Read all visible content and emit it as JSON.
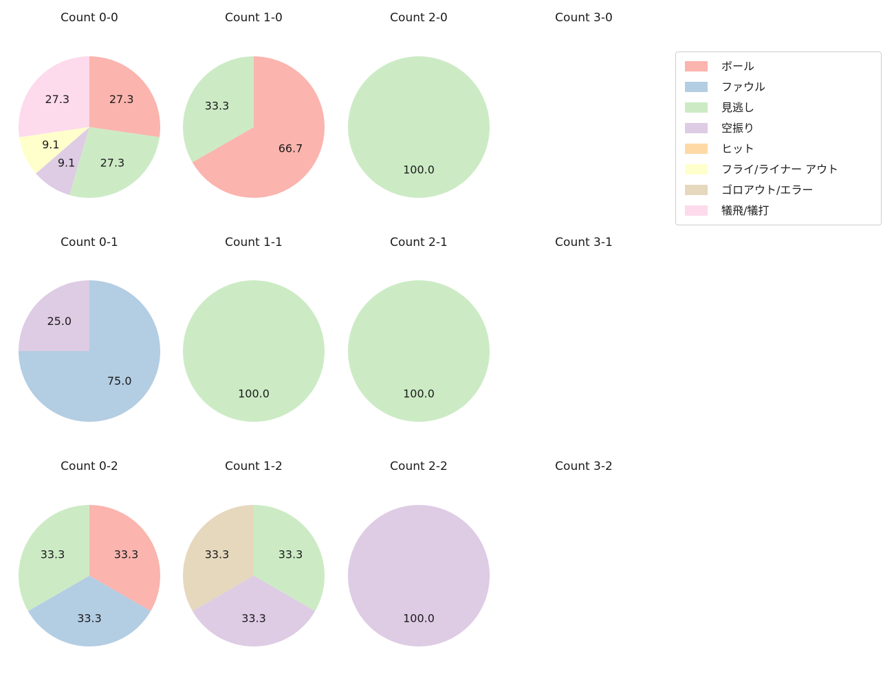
{
  "figure": {
    "background": "#ffffff",
    "text_color": "#1a1a1a",
    "grid": {
      "rows": 3,
      "cols": 4
    }
  },
  "legend": {
    "items": [
      {
        "label": "ボール",
        "color": "#fbb4ae"
      },
      {
        "label": "ファウル",
        "color": "#b3cde3"
      },
      {
        "label": "見逃し",
        "color": "#ccebc5"
      },
      {
        "label": "空振り",
        "color": "#decbe4"
      },
      {
        "label": "ヒット",
        "color": "#fed9a6"
      },
      {
        "label": "フライ/ライナー アウト",
        "color": "#ffffcc"
      },
      {
        "label": "ゴロアウト/エラー",
        "color": "#e5d8bd"
      },
      {
        "label": "犠飛/犠打",
        "color": "#fddaec"
      }
    ]
  },
  "chart_data": [
    {
      "type": "pie",
      "title": "Count 0-0",
      "start_angle_deg": 90,
      "direction": "clockwise",
      "slices": [
        {
          "category": "ボール",
          "value": 27.3,
          "pct": "27.3"
        },
        {
          "category": "見逃し",
          "value": 27.3,
          "pct": "27.3"
        },
        {
          "category": "空振り",
          "value": 9.1,
          "pct": "9.1"
        },
        {
          "category": "フライ/ライナー アウト",
          "value": 9.1,
          "pct": "9.1"
        },
        {
          "category": "犠飛/犠打",
          "value": 27.3,
          "pct": "27.3"
        }
      ]
    },
    {
      "type": "pie",
      "title": "Count 1-0",
      "start_angle_deg": 90,
      "direction": "clockwise",
      "slices": [
        {
          "category": "ボール",
          "value": 66.7,
          "pct": "66.7"
        },
        {
          "category": "見逃し",
          "value": 33.3,
          "pct": "33.3"
        }
      ]
    },
    {
      "type": "pie",
      "title": "Count 2-0",
      "start_angle_deg": 90,
      "direction": "clockwise",
      "slices": [
        {
          "category": "見逃し",
          "value": 100.0,
          "pct": "100.0"
        }
      ]
    },
    {
      "type": "pie",
      "title": "Count 3-0",
      "slices": []
    },
    {
      "type": "pie",
      "title": "Count 0-1",
      "start_angle_deg": 90,
      "direction": "clockwise",
      "slices": [
        {
          "category": "ファウル",
          "value": 75.0,
          "pct": "75.0"
        },
        {
          "category": "空振り",
          "value": 25.0,
          "pct": "25.0"
        }
      ]
    },
    {
      "type": "pie",
      "title": "Count 1-1",
      "start_angle_deg": 90,
      "direction": "clockwise",
      "slices": [
        {
          "category": "見逃し",
          "value": 100.0,
          "pct": "100.0"
        }
      ]
    },
    {
      "type": "pie",
      "title": "Count 2-1",
      "start_angle_deg": 90,
      "direction": "clockwise",
      "slices": [
        {
          "category": "見逃し",
          "value": 100.0,
          "pct": "100.0"
        }
      ]
    },
    {
      "type": "pie",
      "title": "Count 3-1",
      "slices": []
    },
    {
      "type": "pie",
      "title": "Count 0-2",
      "start_angle_deg": 90,
      "direction": "clockwise",
      "slices": [
        {
          "category": "ボール",
          "value": 33.3,
          "pct": "33.3"
        },
        {
          "category": "ファウル",
          "value": 33.3,
          "pct": "33.3"
        },
        {
          "category": "見逃し",
          "value": 33.3,
          "pct": "33.3"
        }
      ]
    },
    {
      "type": "pie",
      "title": "Count 1-2",
      "start_angle_deg": 90,
      "direction": "clockwise",
      "slices": [
        {
          "category": "見逃し",
          "value": 33.3,
          "pct": "33.3"
        },
        {
          "category": "空振り",
          "value": 33.3,
          "pct": "33.3"
        },
        {
          "category": "ゴロアウト/エラー",
          "value": 33.3,
          "pct": "33.3"
        }
      ]
    },
    {
      "type": "pie",
      "title": "Count 2-2",
      "start_angle_deg": 90,
      "direction": "clockwise",
      "slices": [
        {
          "category": "空振り",
          "value": 100.0,
          "pct": "100.0"
        }
      ]
    },
    {
      "type": "pie",
      "title": "Count 3-2",
      "slices": []
    }
  ]
}
